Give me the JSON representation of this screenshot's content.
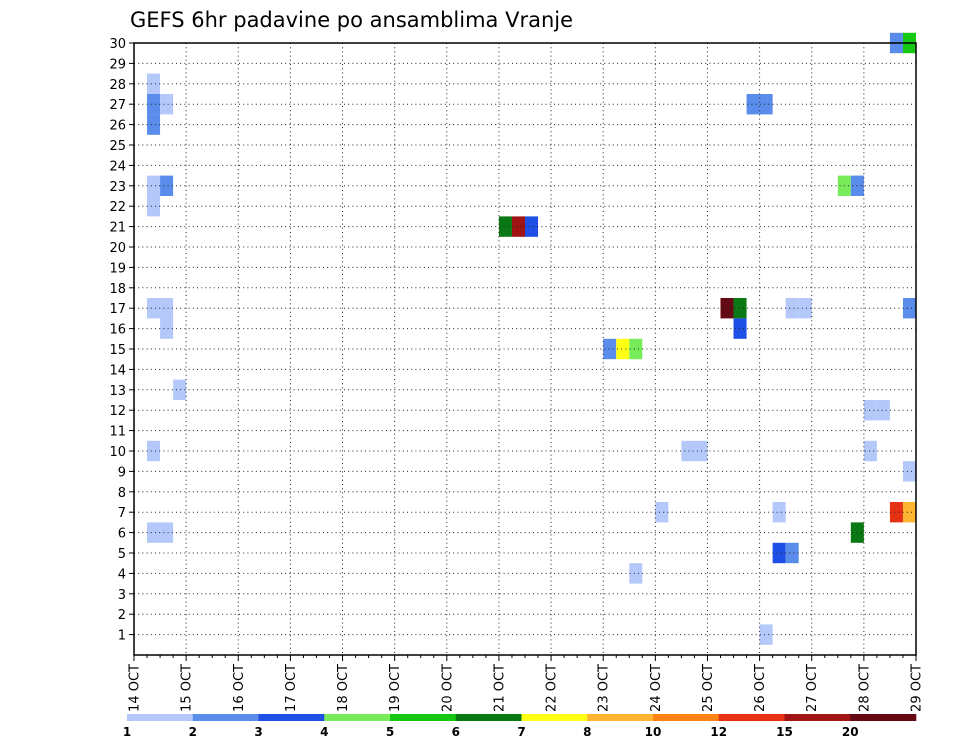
{
  "chart_data": {
    "type": "heatmap",
    "title": "GEFS 6hr padavine po ansamblima Vranje",
    "xlabel": "",
    "ylabel": "",
    "x_ticks": [
      "14 OCT",
      "15 OCT",
      "16 OCT",
      "17 OCT",
      "18 OCT",
      "19 OCT",
      "20 OCT",
      "21 OCT",
      "22 OCT",
      "23 OCT",
      "24 OCT",
      "25 OCT",
      "26 OCT",
      "27 OCT",
      "28 OCT",
      "29 OCT"
    ],
    "y_ticks": [
      "1",
      "2",
      "3",
      "4",
      "5",
      "6",
      "7",
      "8",
      "9",
      "10",
      "11",
      "12",
      "13",
      "14",
      "15",
      "16",
      "17",
      "18",
      "19",
      "20",
      "21",
      "22",
      "23",
      "24",
      "25",
      "26",
      "27",
      "28",
      "29",
      "30"
    ],
    "x_range_days": [
      0,
      15
    ],
    "y_range": [
      0,
      30
    ],
    "grid": true,
    "colorbar": {
      "labels": [
        "1",
        "2",
        "3",
        "4",
        "5",
        "6",
        "7",
        "8",
        "10",
        "12",
        "15",
        "20"
      ],
      "colors": [
        "#b4c8fa",
        "#5a8ceb",
        "#1e50e6",
        "#78eb5a",
        "#14c814",
        "#0a7814",
        "#ffff14",
        "#ffb432",
        "#ff8214",
        "#e63214",
        "#a01414",
        "#640a14"
      ]
    },
    "cells": [
      {
        "day": 0.25,
        "member": 28,
        "color": "#b4c8fa"
      },
      {
        "day": 0.25,
        "member": 27,
        "color": "#5a8ceb"
      },
      {
        "day": 0.5,
        "member": 27,
        "color": "#b4c8fa"
      },
      {
        "day": 0.25,
        "member": 26,
        "color": "#5a8ceb"
      },
      {
        "day": 0.25,
        "member": 23,
        "color": "#b4c8fa"
      },
      {
        "day": 0.5,
        "member": 23,
        "color": "#5a8ceb"
      },
      {
        "day": 0.25,
        "member": 22,
        "color": "#b4c8fa"
      },
      {
        "day": 0.25,
        "member": 17,
        "color": "#b4c8fa"
      },
      {
        "day": 0.5,
        "member": 17,
        "color": "#b4c8fa"
      },
      {
        "day": 0.5,
        "member": 16,
        "color": "#b4c8fa"
      },
      {
        "day": 0.75,
        "member": 13,
        "color": "#b4c8fa"
      },
      {
        "day": 0.25,
        "member": 10,
        "color": "#b4c8fa"
      },
      {
        "day": 0.25,
        "member": 6,
        "color": "#b4c8fa"
      },
      {
        "day": 0.5,
        "member": 6,
        "color": "#b4c8fa"
      },
      {
        "day": 7.0,
        "member": 21,
        "color": "#0a7814"
      },
      {
        "day": 7.25,
        "member": 21,
        "color": "#a01414"
      },
      {
        "day": 7.5,
        "member": 21,
        "color": "#1e50e6"
      },
      {
        "day": 9.0,
        "member": 15,
        "color": "#5a8ceb"
      },
      {
        "day": 9.25,
        "member": 15,
        "color": "#ffff14"
      },
      {
        "day": 9.5,
        "member": 15,
        "color": "#78eb5a"
      },
      {
        "day": 9.5,
        "member": 4,
        "color": "#b4c8fa"
      },
      {
        "day": 10.0,
        "member": 7,
        "color": "#b4c8fa"
      },
      {
        "day": 10.5,
        "member": 10,
        "color": "#b4c8fa"
      },
      {
        "day": 10.75,
        "member": 10,
        "color": "#b4c8fa"
      },
      {
        "day": 11.25,
        "member": 17,
        "color": "#640a14"
      },
      {
        "day": 11.5,
        "member": 17,
        "color": "#0a7814"
      },
      {
        "day": 11.5,
        "member": 16,
        "color": "#1e50e6"
      },
      {
        "day": 11.75,
        "member": 27,
        "color": "#5a8ceb"
      },
      {
        "day": 12.0,
        "member": 27,
        "color": "#5a8ceb"
      },
      {
        "day": 12.0,
        "member": 1,
        "color": "#b4c8fa"
      },
      {
        "day": 12.25,
        "member": 7,
        "color": "#b4c8fa"
      },
      {
        "day": 12.25,
        "member": 5,
        "color": "#1e50e6"
      },
      {
        "day": 12.5,
        "member": 5,
        "color": "#5a8ceb"
      },
      {
        "day": 12.5,
        "member": 17,
        "color": "#b4c8fa"
      },
      {
        "day": 12.75,
        "member": 17,
        "color": "#b4c8fa"
      },
      {
        "day": 13.5,
        "member": 23,
        "color": "#78eb5a"
      },
      {
        "day": 13.75,
        "member": 23,
        "color": "#5a8ceb"
      },
      {
        "day": 13.75,
        "member": 6,
        "color": "#0a7814"
      },
      {
        "day": 14.0,
        "member": 12,
        "color": "#b4c8fa"
      },
      {
        "day": 14.25,
        "member": 12,
        "color": "#b4c8fa"
      },
      {
        "day": 14.0,
        "member": 10,
        "color": "#b4c8fa"
      },
      {
        "day": 14.5,
        "member": 30,
        "color": "#5a8ceb"
      },
      {
        "day": 14.75,
        "member": 30,
        "color": "#14c814"
      },
      {
        "day": 14.75,
        "member": 17,
        "color": "#5a8ceb"
      },
      {
        "day": 14.75,
        "member": 9,
        "color": "#b4c8fa"
      },
      {
        "day": 14.5,
        "member": 7,
        "color": "#e63214"
      },
      {
        "day": 14.75,
        "member": 7,
        "color": "#ffb432"
      }
    ]
  }
}
